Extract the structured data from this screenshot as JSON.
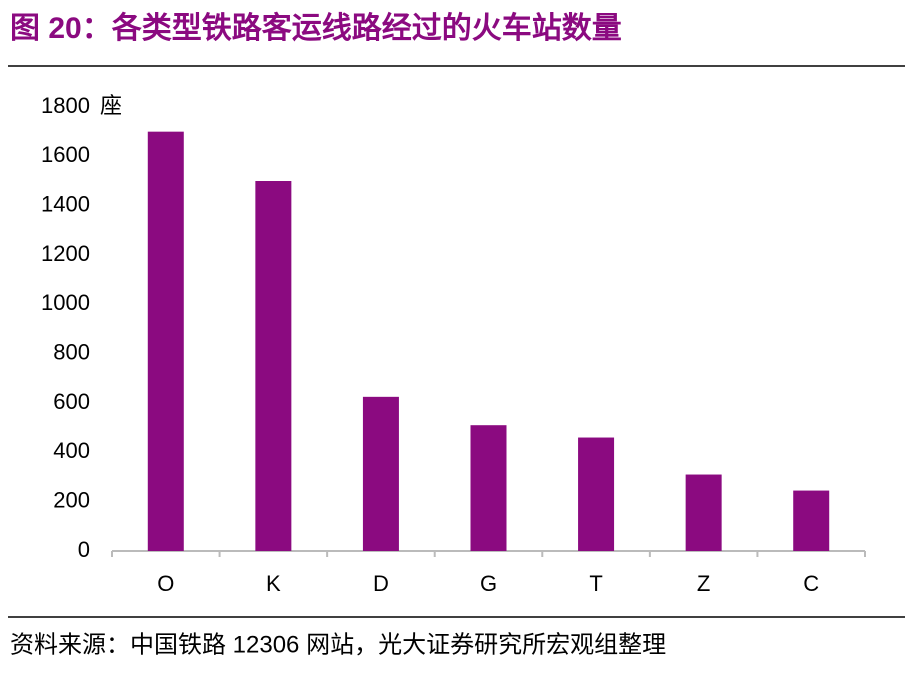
{
  "chart_data": {
    "type": "bar",
    "title": "图 20：各类型铁路客运线路经过的火车站数量",
    "y_unit": "座",
    "categories": [
      "O",
      "K",
      "D",
      "G",
      "T",
      "Z",
      "C"
    ],
    "values": [
      1700,
      1500,
      625,
      510,
      460,
      310,
      245
    ],
    "color": "#8b0a80",
    "ylim": [
      0,
      1800
    ],
    "yticks": [
      0,
      200,
      400,
      600,
      800,
      1000,
      1200,
      1400,
      1600,
      1800
    ],
    "grid": false,
    "source": "资料来源：中国铁路 12306 网站，光大证券研究所宏观组整理"
  }
}
